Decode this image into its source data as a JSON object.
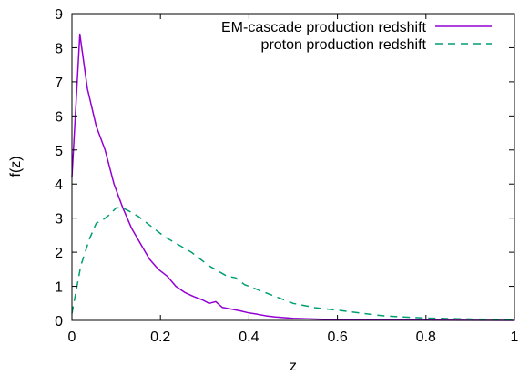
{
  "chart_data": {
    "type": "line",
    "xlabel": "z",
    "ylabel": "f(z)",
    "xlim": [
      0,
      1
    ],
    "ylim": [
      0,
      9
    ],
    "xticks": [
      0,
      0.2,
      0.4,
      0.6,
      0.8,
      1
    ],
    "xtick_labels": [
      "0",
      "0.2",
      "0.4",
      "0.6",
      "0.8",
      "1"
    ],
    "yticks": [
      0,
      1,
      2,
      3,
      4,
      5,
      6,
      7,
      8,
      9
    ],
    "ytick_labels": [
      "0",
      "1",
      "2",
      "3",
      "4",
      "5",
      "6",
      "7",
      "8",
      "9"
    ],
    "grid": false,
    "legend_position": "top-right",
    "series": [
      {
        "name": "EM-cascade production redshift",
        "color": "#9400d3",
        "style": "solid",
        "x": [
          0.0,
          0.018,
          0.035,
          0.055,
          0.075,
          0.095,
          0.115,
          0.135,
          0.155,
          0.175,
          0.195,
          0.215,
          0.235,
          0.255,
          0.275,
          0.295,
          0.31,
          0.325,
          0.34,
          0.36,
          0.38,
          0.4,
          0.42,
          0.44,
          0.46,
          0.48,
          0.5,
          0.55,
          0.6,
          0.7,
          0.8,
          0.9,
          1.0
        ],
        "y": [
          4.2,
          8.4,
          6.8,
          5.7,
          5.0,
          4.0,
          3.3,
          2.7,
          2.25,
          1.8,
          1.5,
          1.3,
          1.0,
          0.82,
          0.7,
          0.6,
          0.5,
          0.55,
          0.38,
          0.33,
          0.28,
          0.22,
          0.18,
          0.13,
          0.1,
          0.08,
          0.06,
          0.04,
          0.02,
          0.01,
          0.005,
          0.003,
          0.0
        ]
      },
      {
        "name": "proton production redshift",
        "color": "#009e73",
        "style": "dashed",
        "x": [
          0.0,
          0.02,
          0.04,
          0.055,
          0.07,
          0.085,
          0.1,
          0.115,
          0.13,
          0.15,
          0.17,
          0.19,
          0.21,
          0.23,
          0.25,
          0.27,
          0.29,
          0.31,
          0.33,
          0.35,
          0.37,
          0.39,
          0.41,
          0.45,
          0.5,
          0.55,
          0.6,
          0.65,
          0.7,
          0.75,
          0.8,
          0.9,
          1.0
        ],
        "y": [
          0.2,
          1.6,
          2.4,
          2.85,
          2.95,
          3.1,
          3.3,
          3.3,
          3.2,
          3.05,
          2.85,
          2.65,
          2.45,
          2.3,
          2.15,
          2.0,
          1.8,
          1.6,
          1.45,
          1.3,
          1.25,
          1.05,
          0.95,
          0.75,
          0.5,
          0.37,
          0.3,
          0.22,
          0.14,
          0.1,
          0.07,
          0.04,
          0.02
        ]
      }
    ]
  }
}
